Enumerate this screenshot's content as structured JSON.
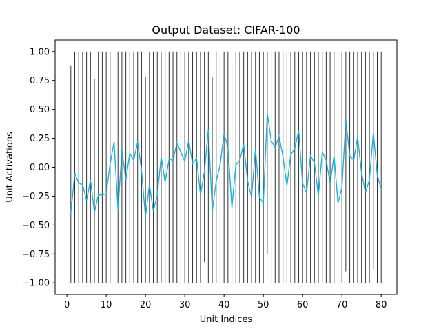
{
  "chart_data": {
    "type": "line",
    "title": "Output Dataset: CIFAR-100",
    "xlabel": "Unit Indices",
    "ylabel": "Unit Activations",
    "xlim": [
      -3,
      84
    ],
    "ylim": [
      -1.1,
      1.1
    ],
    "xticks": [
      0,
      10,
      20,
      30,
      40,
      50,
      60,
      70,
      80
    ],
    "yticks": [
      -1.0,
      -0.75,
      -0.5,
      -0.25,
      0.0,
      0.25,
      0.5,
      0.75,
      1.0
    ],
    "ytick_labels": [
      "−1.00",
      "−0.75",
      "−0.50",
      "−0.25",
      "0.00",
      "0.25",
      "0.50",
      "0.75",
      "1.00"
    ],
    "grid": false,
    "colors": {
      "series_line": "#17b2e0",
      "range_bars": "#333333"
    },
    "series": [
      {
        "type": "line",
        "x": [
          1,
          2,
          3,
          4,
          5,
          6,
          7,
          8,
          9,
          10,
          11,
          12,
          13,
          14,
          15,
          16,
          17,
          18,
          19,
          20,
          21,
          22,
          23,
          24,
          25,
          26,
          27,
          28,
          29,
          30,
          31,
          32,
          33,
          34,
          35,
          36,
          37,
          38,
          39,
          40,
          41,
          42,
          43,
          44,
          45,
          46,
          47,
          48,
          49,
          50,
          51,
          52,
          53,
          54,
          55,
          56,
          57,
          58,
          59,
          60,
          61,
          62,
          63,
          64,
          65,
          66,
          67,
          68,
          69,
          70,
          71,
          72,
          73,
          74,
          75,
          76,
          77,
          78,
          79,
          80
        ],
        "values": [
          -0.4,
          -0.05,
          -0.14,
          -0.15,
          -0.29,
          -0.11,
          -0.39,
          -0.24,
          -0.24,
          -0.23,
          0.03,
          0.22,
          -0.37,
          0.15,
          -0.11,
          0.12,
          0.06,
          0.22,
          -0.03,
          -0.43,
          -0.15,
          -0.38,
          -0.24,
          0.09,
          -0.13,
          0.07,
          0.06,
          0.21,
          0.13,
          0.05,
          0.23,
          0.03,
          0.08,
          -0.24,
          -0.04,
          0.33,
          -0.38,
          -0.12,
          0.02,
          0.29,
          0.17,
          -0.35,
          0.02,
          0.06,
          0.2,
          -0.12,
          -0.26,
          0.16,
          -0.26,
          -0.31,
          0.47,
          0.23,
          0.17,
          0.27,
          0.09,
          -0.16,
          0.11,
          0.16,
          0.32,
          -0.14,
          -0.22,
          0.1,
          0.04,
          -0.25,
          0.13,
          0.06,
          -0.14,
          0.1,
          -0.31,
          -0.18,
          0.41,
          0.1,
          0.06,
          0.26,
          -0.05,
          -0.22,
          -0.11,
          0.3,
          -0.07,
          -0.19
        ]
      },
      {
        "type": "vertical-range",
        "x": [
          1,
          2,
          3,
          4,
          5,
          6,
          7,
          8,
          9,
          10,
          11,
          12,
          13,
          14,
          15,
          16,
          17,
          18,
          19,
          20,
          21,
          22,
          23,
          24,
          25,
          26,
          27,
          28,
          29,
          30,
          31,
          32,
          33,
          34,
          35,
          36,
          37,
          38,
          39,
          40,
          41,
          42,
          43,
          44,
          45,
          46,
          47,
          48,
          49,
          50,
          51,
          52,
          53,
          54,
          55,
          56,
          57,
          58,
          59,
          60,
          61,
          62,
          63,
          64,
          65,
          66,
          67,
          68,
          69,
          70,
          71,
          72,
          73,
          74,
          75,
          76,
          77,
          78,
          79,
          80
        ],
        "low": [
          -1,
          -1,
          -1,
          -1,
          -1,
          -1,
          -1,
          -1,
          -1,
          -1,
          -1,
          -1,
          -1,
          -1,
          -1,
          -1,
          -1,
          -1,
          -1,
          -1,
          -1,
          -1,
          -1,
          -1,
          -1,
          -1,
          -1,
          -1,
          -1,
          -1,
          -1,
          -1,
          -1,
          -1,
          -0.82,
          -1,
          -1,
          -1,
          -1,
          -1,
          -1,
          -1,
          -1,
          -1,
          -1,
          -1,
          -1,
          -1,
          -1,
          -1,
          -0.75,
          -1,
          -1,
          -1,
          -1,
          -1,
          -1,
          -1,
          -1,
          -1,
          -1,
          -1,
          -1,
          -1,
          -1,
          -1,
          -1,
          -1,
          -1,
          -1,
          -0.9,
          -1,
          -1,
          -1,
          -1,
          -1,
          -1,
          -0.88,
          -1,
          -1
        ],
        "high": [
          0.88,
          1,
          1,
          1,
          1,
          1,
          0.76,
          1,
          1,
          1,
          1,
          1,
          1,
          1,
          1,
          1,
          1,
          1,
          1,
          0.78,
          1,
          1,
          1,
          1,
          1,
          1,
          1,
          1,
          1,
          1,
          1,
          1,
          1,
          1,
          1,
          1,
          0.78,
          1,
          1,
          1,
          1,
          0.92,
          1,
          1,
          1,
          1,
          1,
          1,
          1,
          1,
          1,
          1,
          1,
          1,
          1,
          1,
          1,
          1,
          1,
          1,
          1,
          1,
          1,
          1,
          1,
          1,
          1,
          1,
          1,
          1,
          1,
          1,
          1,
          1,
          1,
          1,
          1,
          1,
          1,
          1
        ]
      }
    ]
  }
}
